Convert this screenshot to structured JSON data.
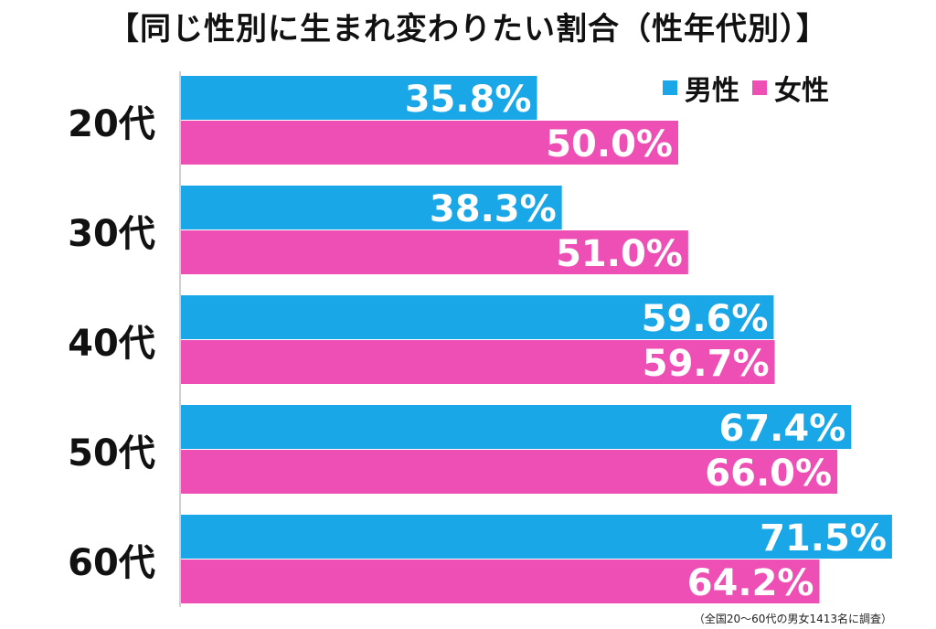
{
  "chart_data": {
    "type": "bar",
    "orientation": "horizontal",
    "title": "【同じ性別に生まれ変わりたい割合（性年代別）】",
    "categories": [
      "20代",
      "30代",
      "40代",
      "50代",
      "60代"
    ],
    "series": [
      {
        "name": "男性",
        "color": "#1aa7e8",
        "values": [
          35.8,
          38.3,
          59.6,
          67.4,
          71.5
        ],
        "labels": [
          "35.8%",
          "38.3%",
          "59.6%",
          "67.4%",
          "71.5%"
        ]
      },
      {
        "name": "女性",
        "color": "#ee4fb4",
        "values": [
          50.0,
          51.0,
          59.7,
          66.0,
          64.2
        ],
        "labels": [
          "50.0%",
          "51.0%",
          "59.7%",
          "66.0%",
          "64.2%"
        ]
      }
    ],
    "xlim": [
      0,
      100
    ],
    "grid": false,
    "legend": "top-right",
    "note": "（全国20～60代の男女1413名に調査）"
  }
}
